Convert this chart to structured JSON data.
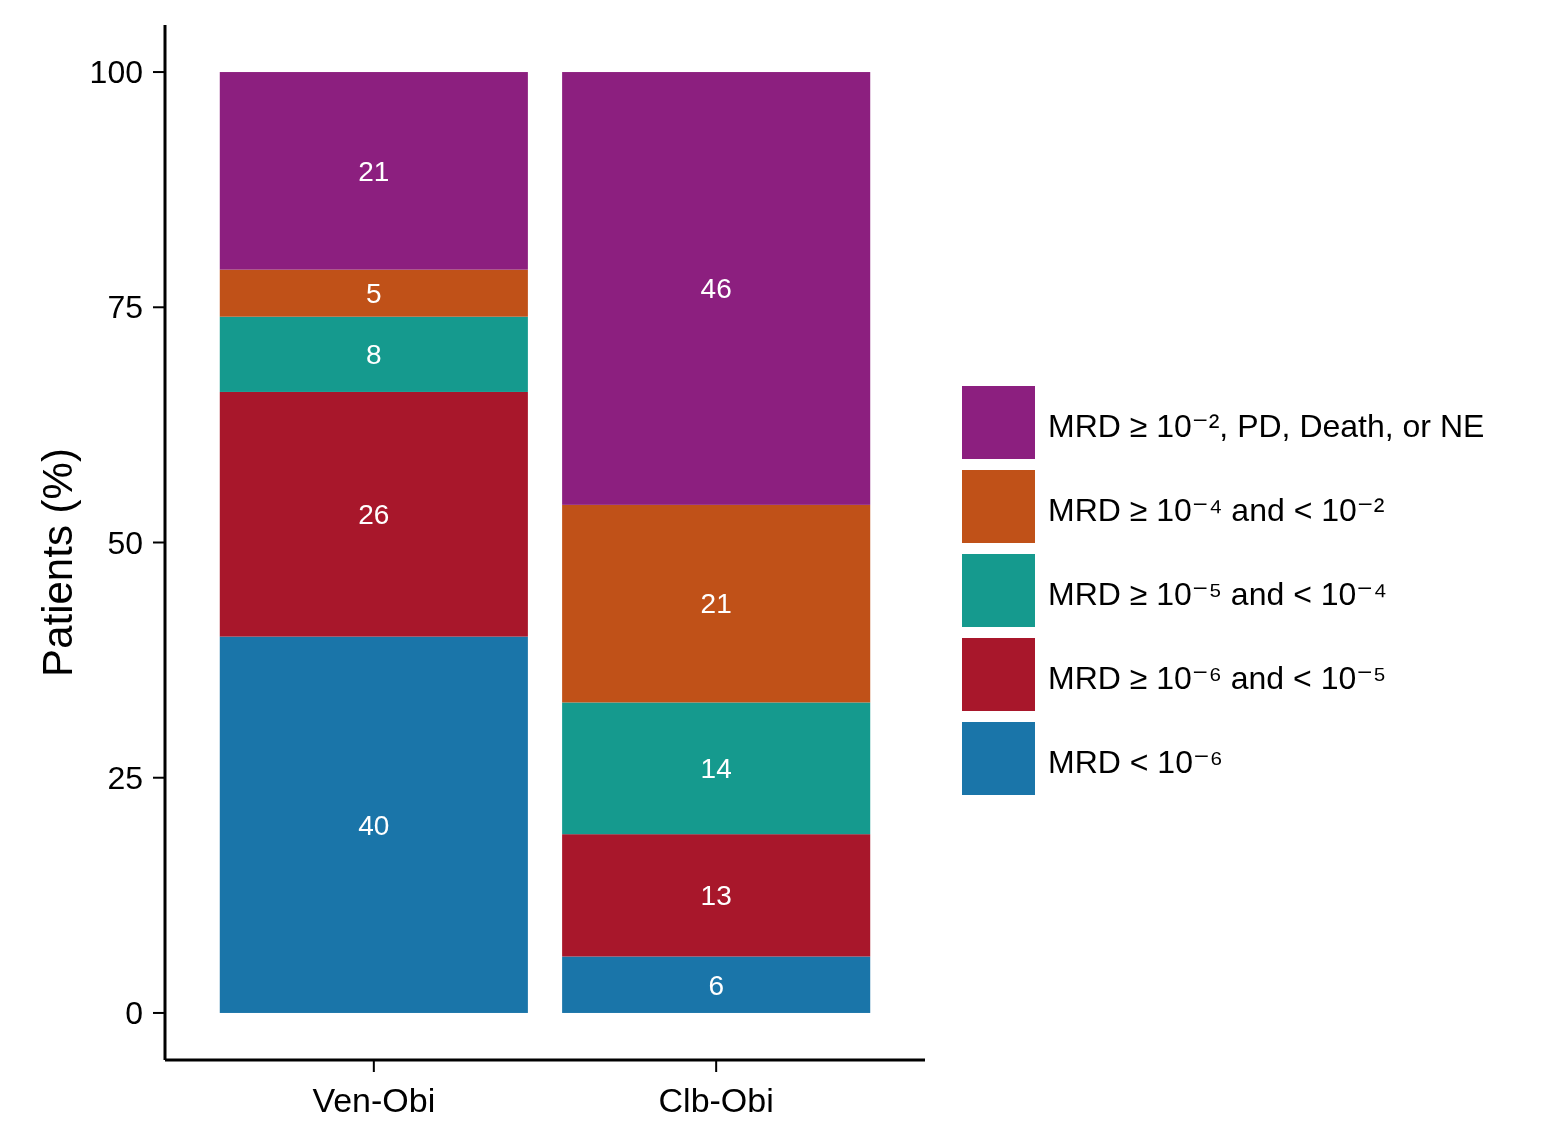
{
  "chart_data": {
    "type": "bar",
    "stacked": true,
    "categories": [
      "Ven-Obi",
      "Clb-Obi"
    ],
    "ylabel": "Patients (%)",
    "ylim": [
      -5,
      105
    ],
    "yticks": [
      0,
      25,
      50,
      75,
      100
    ],
    "data_labels": true,
    "legend": "right",
    "grid": false,
    "series": [
      {
        "name": "MRD < 10⁻⁶",
        "color": "#1a75a9",
        "values": [
          40,
          6
        ]
      },
      {
        "name": "MRD ≥ 10⁻⁶ and < 10⁻⁵",
        "color": "#a8172b",
        "values": [
          26,
          13
        ]
      },
      {
        "name": "MRD ≥ 10⁻⁵ and < 10⁻⁴",
        "color": "#159a8e",
        "values": [
          8,
          14
        ]
      },
      {
        "name": "MRD ≥ 10⁻⁴ and < 10⁻²",
        "color": "#c05118",
        "values": [
          5,
          21
        ]
      },
      {
        "name": "MRD ≥ 10⁻², PD, Death, or NE",
        "color": "#8c1f7f",
        "values": [
          21,
          46
        ]
      }
    ]
  }
}
